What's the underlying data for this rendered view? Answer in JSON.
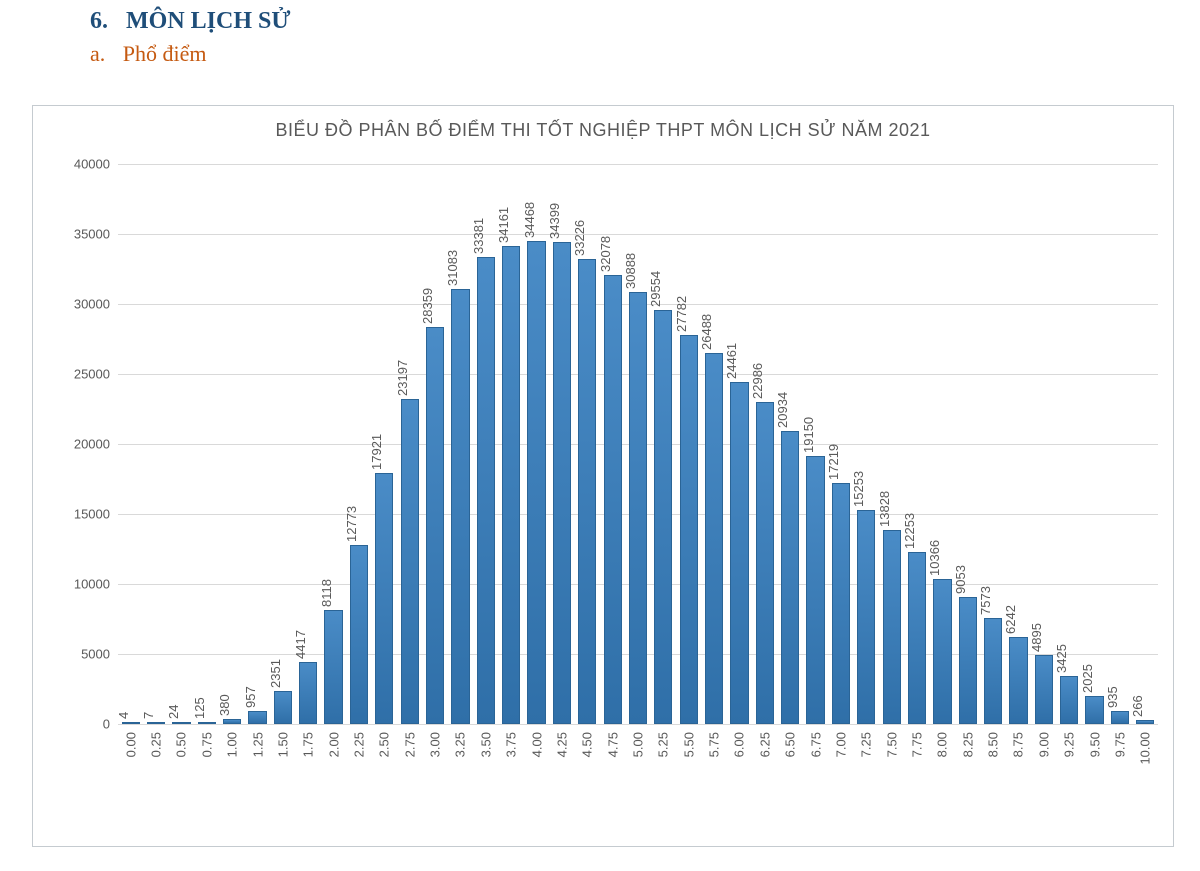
{
  "heading": {
    "number": "6.",
    "title": "MÔN LỊCH SỬ",
    "color": "#1f4e79",
    "fontsize": 24
  },
  "subheading": {
    "number": "a.",
    "title": "Phổ điểm",
    "color": "#c55a11",
    "fontsize": 22
  },
  "chart": {
    "type": "bar",
    "title": "BIỂU ĐỒ PHÂN BỐ ĐIỂM THI TỐT NGHIỆP THPT MÔN LỊCH SỬ NĂM 2021",
    "title_fontsize": 18,
    "title_color": "#595959",
    "background_color": "#ffffff",
    "border_color": "#c5cbd0",
    "grid_color": "#d9d9d9",
    "bar_color_top": "#4a8cc7",
    "bar_color_bottom": "#2f6fa8",
    "bar_border_color": "#2a6496",
    "label_color": "#595959",
    "label_fontsize": 13,
    "ylim": [
      0,
      40000
    ],
    "ytick_step": 5000,
    "yticks": [
      0,
      5000,
      10000,
      15000,
      20000,
      25000,
      30000,
      35000,
      40000
    ],
    "bar_width": 0.72,
    "categories": [
      "0.00",
      "0.25",
      "0.50",
      "0.75",
      "1.00",
      "1.25",
      "1.50",
      "1.75",
      "2.00",
      "2.25",
      "2.50",
      "2.75",
      "3.00",
      "3.25",
      "3.50",
      "3.75",
      "4.00",
      "4.25",
      "4.50",
      "4.75",
      "5.00",
      "5.25",
      "5.50",
      "5.75",
      "6.00",
      "6.25",
      "6.50",
      "6.75",
      "7.00",
      "7.25",
      "7.50",
      "7.75",
      "8.00",
      "8.25",
      "8.50",
      "8.75",
      "9.00",
      "9.25",
      "9.50",
      "9.75",
      "10.00"
    ],
    "values": [
      4,
      7,
      24,
      125,
      380,
      957,
      2351,
      4417,
      8118,
      12773,
      17921,
      23197,
      28359,
      31083,
      33381,
      34161,
      34468,
      34399,
      33226,
      32078,
      30888,
      29554,
      27782,
      26488,
      24461,
      22986,
      20934,
      19150,
      17219,
      15253,
      13828,
      12253,
      10366,
      9053,
      7573,
      6242,
      4895,
      3425,
      2025,
      935,
      266
    ]
  }
}
